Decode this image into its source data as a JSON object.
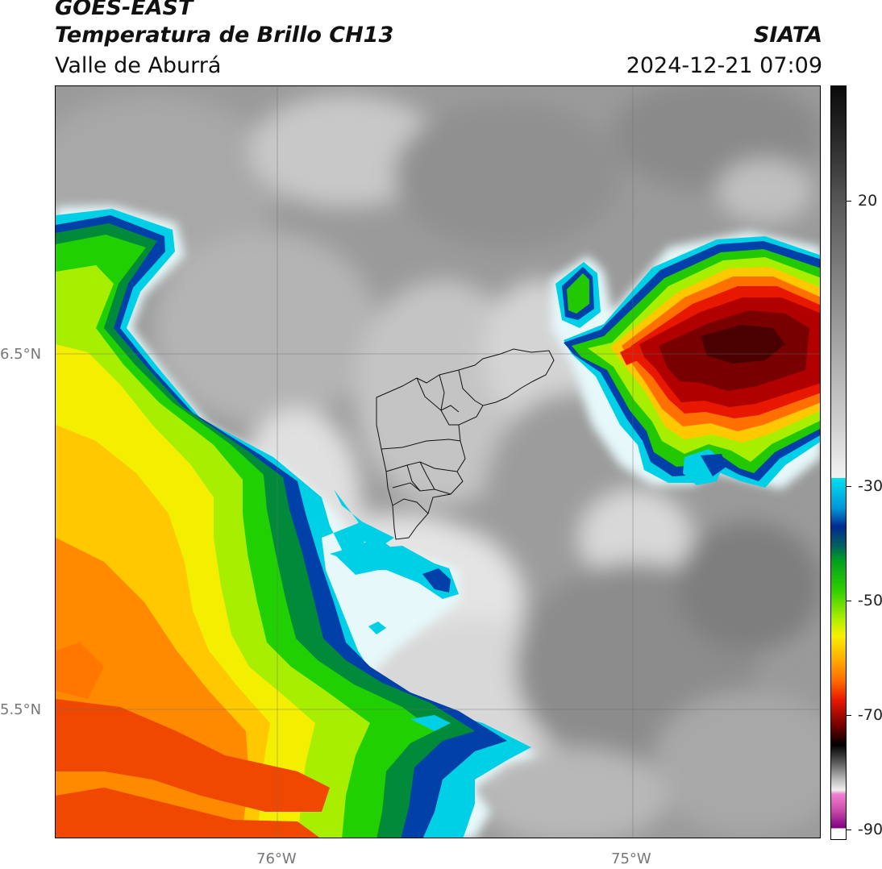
{
  "header": {
    "source_title": "GOES-EAST",
    "product_title": "Temperatura de Brillo CH13",
    "region": "Valle de Aburrá",
    "agency": "SIATA",
    "timestamp": "2024-12-21 07:09"
  },
  "map": {
    "lat_labels": [
      "6.5°N",
      "5.5°N"
    ],
    "lon_labels": [
      "76°W",
      "75°W"
    ]
  },
  "colorbar": {
    "tick_labels": [
      "20",
      "-30",
      "-50",
      "-70",
      "-90"
    ],
    "colors": {
      "warm_gray_top": "#1a1a1a",
      "gray_mid": "#8c8c8c",
      "light_gray": "#e8e8e8",
      "cyan": "#00d8e8",
      "dark_blue": "#002a90",
      "green": "#22c800",
      "yellow": "#f8f000",
      "orange": "#ff9000",
      "red": "#e81800",
      "dark_red": "#700000",
      "black": "#000000",
      "pink": "#e060c0",
      "purple": "#800080"
    }
  }
}
